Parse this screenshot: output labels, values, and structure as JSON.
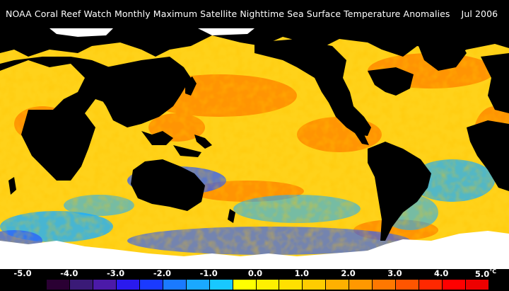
{
  "title": "NOAA Coral Reef Watch Monthly Maximum Satellite Nighttime Sea Surface Temperature Anomalies",
  "date": "Jul 2006",
  "legend": {
    "unit": "°C",
    "labels": [
      "-5.0",
      "-4.0",
      "-3.0",
      "-2.0",
      "-1.0",
      "0.0",
      "1.0",
      "2.0",
      "3.0",
      "4.0",
      "5.0"
    ],
    "colors": [
      "#000000",
      "#2a0033",
      "#3a1a77",
      "#4b1aa8",
      "#2a1aee",
      "#1a3aff",
      "#1a7aff",
      "#1aa8ff",
      "#18c8ff",
      "#ffff00",
      "#fff000",
      "#ffe000",
      "#ffcc00",
      "#ffb000",
      "#ff9800",
      "#ff7800",
      "#ff5500",
      "#ff2800",
      "#ff0000",
      "#ee0000"
    ]
  },
  "map": {
    "ocean_colors": {
      "warm": "#ffd21a",
      "hot": "#ff8a00",
      "cold": "#1aaeff",
      "deep_cold": "#2a5aff",
      "land": "#000000",
      "ice": "#ffffff"
    }
  }
}
